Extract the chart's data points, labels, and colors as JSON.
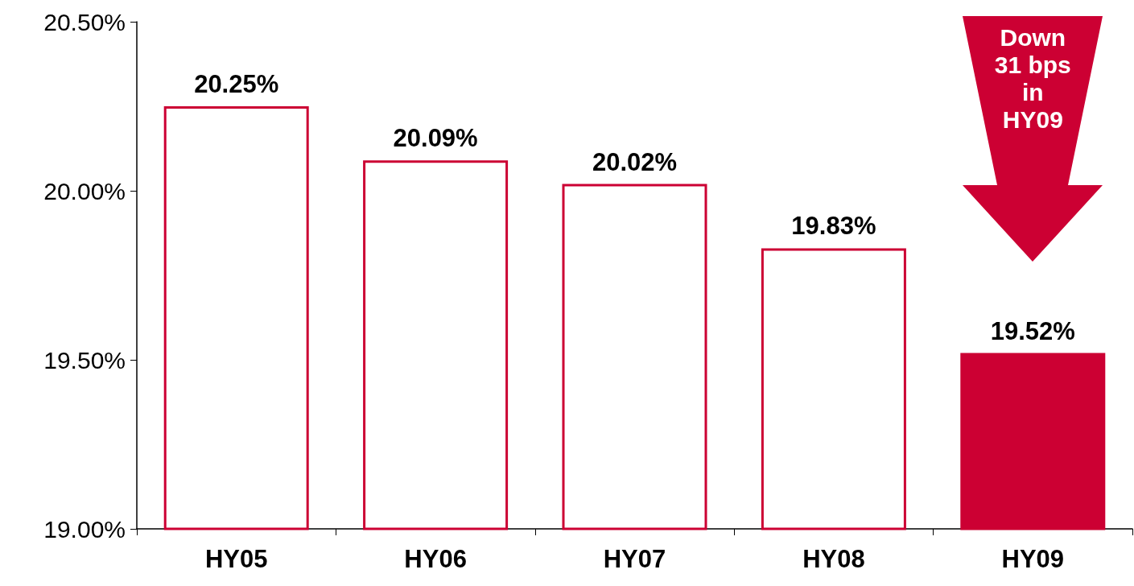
{
  "chart_data": {
    "type": "bar",
    "categories": [
      "HY05",
      "HY06",
      "HY07",
      "HY08",
      "HY09"
    ],
    "values": [
      20.25,
      20.09,
      20.02,
      19.83,
      19.52
    ],
    "color": "#cc0033",
    "colors": [
      "#ffffff",
      "#ffffff",
      "#ffffff",
      "#ffffff",
      "#cc0033"
    ],
    "value_labels": [
      "20.25%",
      "20.09%",
      "20.02%",
      "19.83%",
      "19.52%"
    ],
    "ylim": [
      19.0,
      20.5
    ],
    "yticks": [
      {
        "value": 19.0,
        "label": "19.00%"
      },
      {
        "value": 19.5,
        "label": "19.50%"
      },
      {
        "value": 20.0,
        "label": "20.00%"
      },
      {
        "value": 20.5,
        "label": "20.50%"
      }
    ],
    "grid": false,
    "annotations": [
      "Down\n31 bps\nin\nHY09"
    ]
  }
}
